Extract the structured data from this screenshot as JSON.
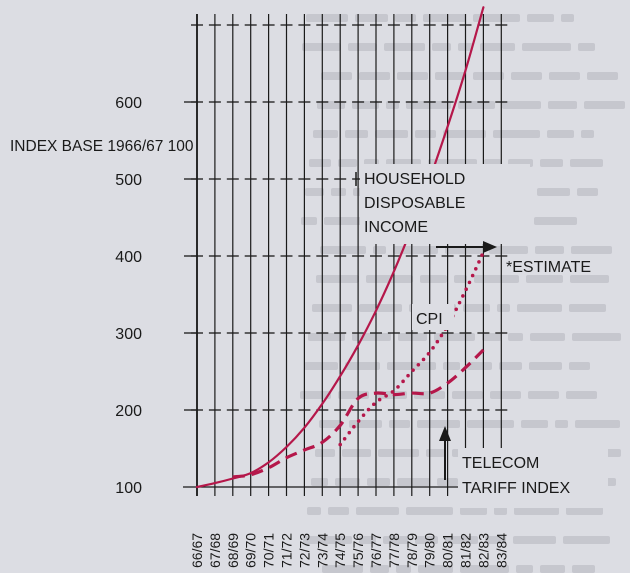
{
  "colors": {
    "background": "#dcdde3",
    "ink": "#1a1a1a",
    "income": "#b5174a",
    "cpi": "#b5174a",
    "telecom": "#b5174a"
  },
  "chart_data": {
    "type": "line",
    "title": "",
    "xlabel": "",
    "ylabel": "INDEX BASE 1966/67  100",
    "ylim": [
      100,
      700
    ],
    "yticks": [
      100,
      200,
      300,
      400,
      500,
      600
    ],
    "ytick_labels": [
      "100",
      "200",
      "300",
      "400",
      "500",
      "600"
    ],
    "categories": [
      "66/67",
      "67/68",
      "68/69",
      "69/70",
      "70/71",
      "71/72",
      "72/73",
      "73/74",
      "74/75",
      "75/76",
      "76/77",
      "77/78",
      "78/79",
      "79/80",
      "80/81",
      "81/82",
      "82/83",
      "83/84"
    ],
    "grid": "vertical lines at each year; short horizontal ticks at each 100",
    "series": [
      {
        "key": "income",
        "style": "solid",
        "x": [
          0,
          1,
          2,
          3,
          4,
          5,
          6,
          7,
          8,
          9,
          10,
          11,
          12,
          13,
          14,
          15,
          16
        ],
        "values": [
          100,
          105,
          111,
          118,
          132,
          152,
          177,
          208,
          244,
          284,
          329,
          380,
          437,
          500,
          568,
          641,
          723
        ]
      },
      {
        "key": "cpi",
        "style": "dotted",
        "x": [
          8,
          9,
          10,
          11,
          12,
          13,
          14,
          15,
          16
        ],
        "values": [
          155,
          185,
          210,
          225,
          250,
          275,
          310,
          355,
          405
        ]
      },
      {
        "key": "telecom",
        "style": "dashed",
        "x": [
          2,
          3,
          4,
          5,
          6,
          7,
          8,
          9,
          10,
          11,
          12,
          13,
          14,
          15,
          16
        ],
        "values": [
          113,
          116,
          125,
          138,
          148,
          158,
          180,
          215,
          222,
          220,
          222,
          222,
          235,
          255,
          278
        ]
      }
    ],
    "annotations": [
      {
        "key": "household",
        "lines": [
          "HOUSEHOLD",
          "DISPOSABLE",
          "INCOME"
        ]
      },
      {
        "key": "cpi",
        "lines": [
          "CPI"
        ]
      },
      {
        "key": "estimate",
        "lines": [
          "*ESTIMATE"
        ]
      },
      {
        "key": "telecom",
        "lines": [
          "TELECOM",
          "TARIFF INDEX"
        ]
      }
    ]
  }
}
